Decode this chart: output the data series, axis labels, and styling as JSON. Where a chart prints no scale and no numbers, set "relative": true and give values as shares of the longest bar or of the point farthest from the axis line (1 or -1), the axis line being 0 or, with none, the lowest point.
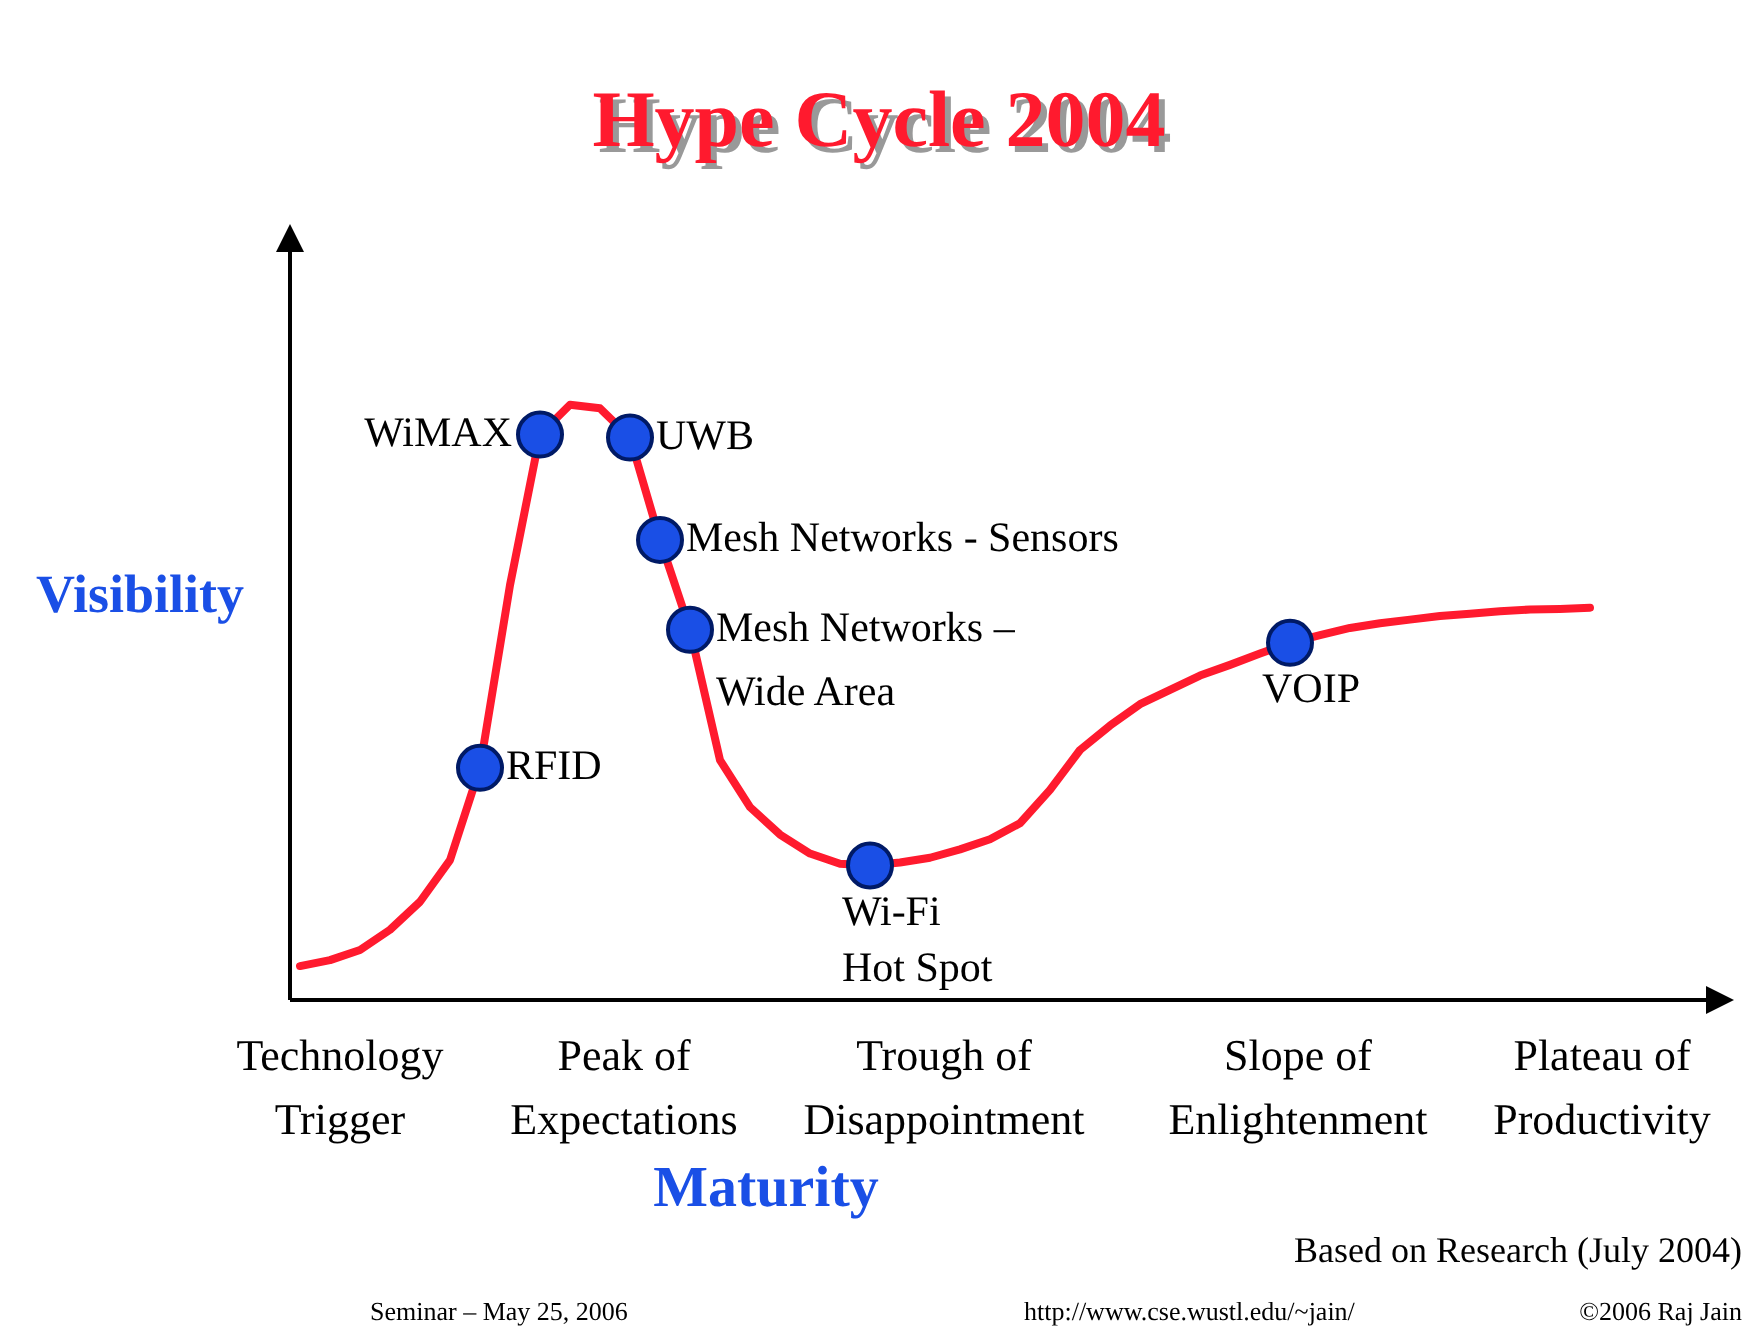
{
  "chart_data": {
    "type": "line",
    "title": "Hype Cycle 2004",
    "xlabel": "Maturity",
    "ylabel": "Visibility",
    "relative": true,
    "categories": [
      null,
      null,
      null,
      null,
      null,
      null,
      null,
      null,
      null,
      null,
      null,
      null,
      null,
      null,
      null,
      null,
      null,
      null,
      null,
      null,
      null,
      null,
      null,
      null,
      null,
      null,
      null,
      null,
      null,
      null,
      null,
      null,
      null,
      null,
      null,
      null,
      null,
      null,
      null,
      null,
      null,
      null,
      null,
      null
    ],
    "series": [
      {
        "color": "#ff1a2e",
        "line_style": "solid",
        "colors": [
          null,
          null,
          null,
          null,
          null,
          null,
          "#1a4fe6",
          null,
          "#1a4fe6",
          null,
          null,
          "#1a4fe6",
          "#1a4fe6",
          "#1a4fe6",
          null,
          null,
          null,
          null,
          null,
          "#1a4fe6",
          null,
          null,
          null,
          null,
          null,
          null,
          null,
          null,
          null,
          null,
          null,
          null,
          null,
          "#1a4fe6",
          null,
          null,
          null,
          null,
          null,
          null,
          null,
          null,
          null,
          null
        ],
        "values": [
          0.057,
          0.067,
          0.084,
          0.118,
          0.165,
          0.235,
          0.39,
          0.697,
          0.95,
          1,
          0.994,
          0.945,
          0.773,
          0.622,
          0.403,
          0.324,
          0.278,
          0.246,
          0.229,
          0.226,
          0.231,
          0.239,
          0.253,
          0.27,
          0.297,
          0.353,
          0.42,
          0.461,
          0.497,
          0.521,
          0.545,
          0.563,
          0.582,
          0.6,
          0.613,
          0.625,
          0.633,
          0.639,
          0.645,
          0.649,
          0.653,
          0.656,
          0.657,
          0.659
        ]
      }
    ],
    "annotations": [
      {
        "text": "RFID"
      },
      {
        "text": "WiMAX"
      },
      {
        "text": "UWB"
      },
      {
        "text": "Mesh Networks - Sensors"
      },
      {
        "text": "Mesh Networks –\nWide Area"
      },
      {
        "text": "Wi-Fi\nHot Spot"
      },
      {
        "text": "VOIP"
      },
      "Technology\nTrigger",
      "Peak of\nExpectations",
      "Trough of\nDisappointment",
      "Slope of\nEnlightenment",
      "Plateau of\nProductivity",
      "Based on Research (July 2004)",
      "Seminar – May 25, 2006",
      "http://www.cse.wustl.edu/~jain/",
      "©2006 Raj Jain"
    ]
  }
}
